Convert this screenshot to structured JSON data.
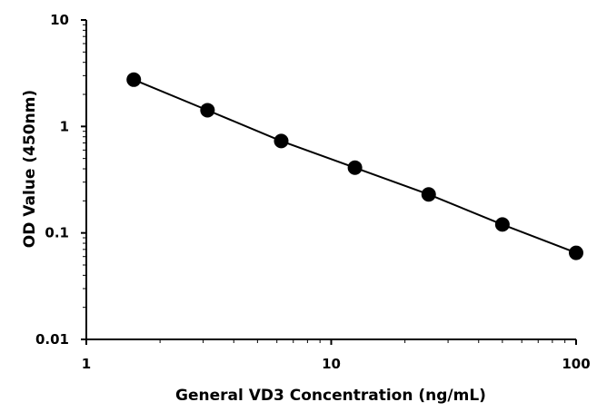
{
  "chart_data": {
    "type": "scatter",
    "title": "",
    "xlabel": "General VD3 Concentration (ng/mL)",
    "ylabel": "OD Value (450nm)",
    "x_scale": "log",
    "y_scale": "log",
    "xlim": [
      1,
      100
    ],
    "ylim": [
      0.01,
      10
    ],
    "x_ticks": [
      "1",
      "10",
      "100"
    ],
    "y_ticks": [
      "0.01",
      "0.1",
      "1",
      "10"
    ],
    "grid": false,
    "legend": "none",
    "series": [
      {
        "marker_color": "#000000",
        "line_color": "#000000",
        "x": [
          1.5625,
          3.125,
          6.25,
          12.5,
          25,
          50,
          100
        ],
        "y": [
          2.75,
          1.42,
          0.73,
          0.41,
          0.23,
          0.12,
          0.065
        ]
      }
    ]
  }
}
